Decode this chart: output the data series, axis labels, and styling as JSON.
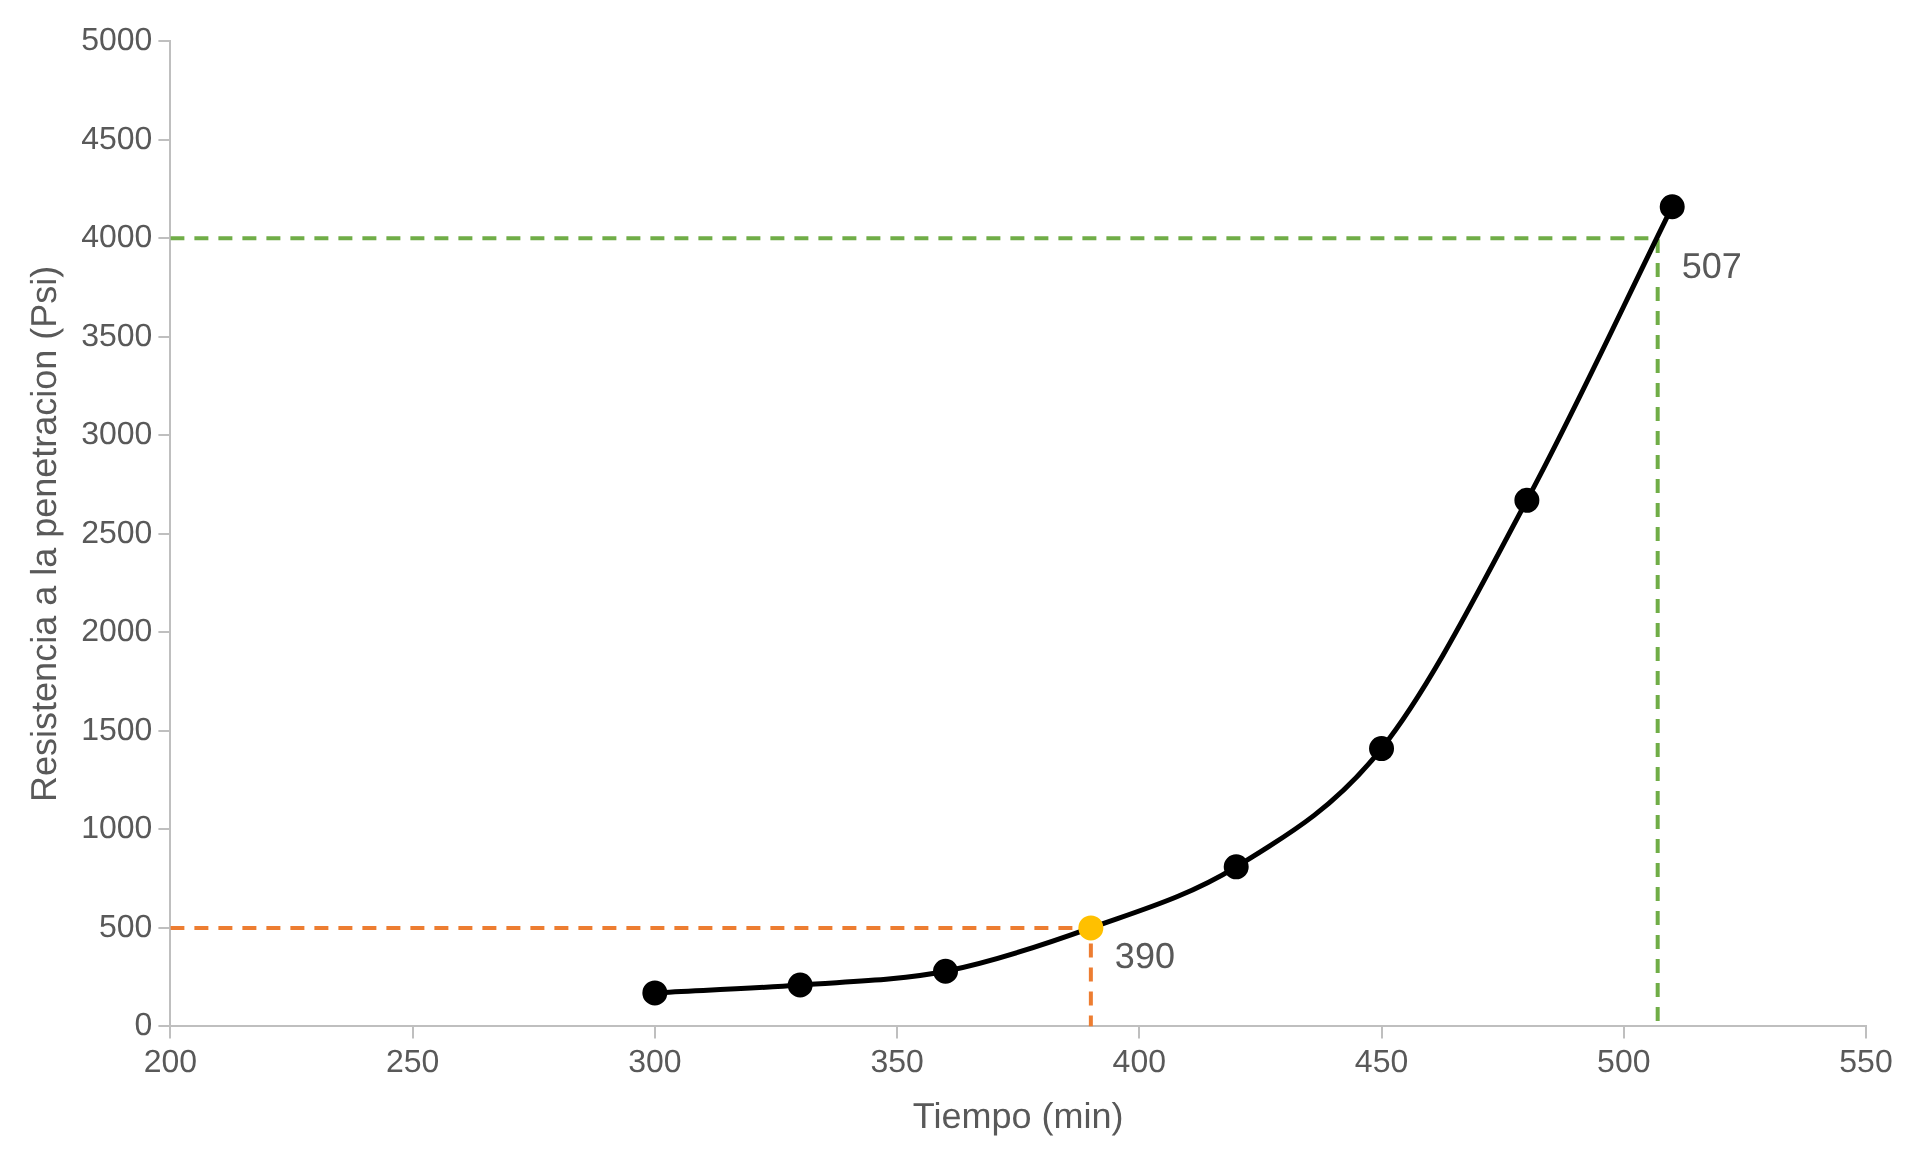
{
  "chart_data": {
    "type": "line",
    "xlabel": "Tiempo (min)",
    "ylabel": "Resistencia a la penetracion (Psi)",
    "xlim": [
      200,
      550
    ],
    "xticks": [
      200,
      250,
      300,
      350,
      400,
      450,
      500,
      550
    ],
    "ylim": [
      0,
      5000
    ],
    "yticks": [
      0,
      500,
      1000,
      1500,
      2000,
      2500,
      3000,
      3500,
      4000,
      4500,
      5000
    ],
    "grid": false,
    "legend": false,
    "series": [
      {
        "type": "line",
        "color": "#000000",
        "marker": "circle",
        "line_style": "solid",
        "x": [
          300,
          330,
          360,
          390,
          420,
          450,
          480,
          510
        ],
        "values": [
          170,
          210,
          280,
          500,
          810,
          1410,
          2670,
          4160
        ],
        "colors": [
          "#000000",
          "#000000",
          "#000000",
          "#ffc000",
          "#000000",
          "#000000",
          "#000000",
          "#000000"
        ]
      },
      {
        "type": "line",
        "color": "#ed7d31",
        "marker": "none",
        "line_style": "dashed",
        "x": [
          200,
          390,
          390
        ],
        "values": [
          500,
          500,
          0
        ]
      },
      {
        "type": "line",
        "color": "#70ad47",
        "marker": "none",
        "line_style": "dashed",
        "x": [
          200,
          507,
          507
        ],
        "values": [
          4000,
          4000,
          0
        ]
      }
    ],
    "annotations": [
      {
        "text": "390",
        "x": 390,
        "y": 500
      },
      {
        "text": "507",
        "x": 507,
        "y": 4000
      }
    ]
  }
}
